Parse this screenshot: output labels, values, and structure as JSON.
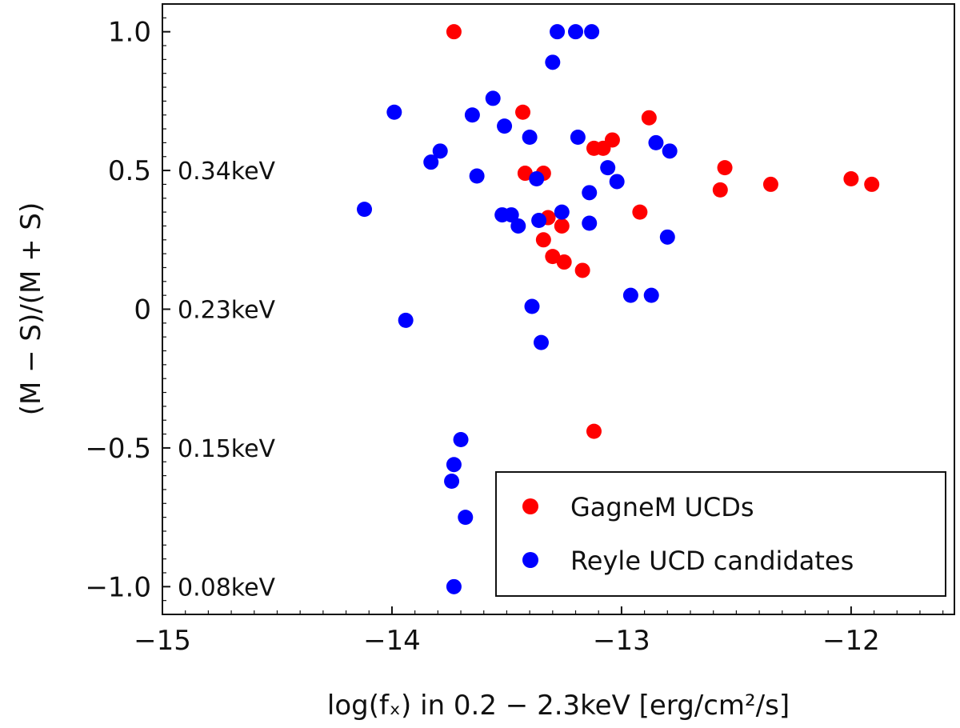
{
  "chart_data": {
    "type": "scatter",
    "title": "",
    "xlabel": "log(fₓ) in 0.2 − 2.3keV [erg/cm²/s]",
    "ylabel": "(M − S)/(M + S)",
    "xlim": [
      -15,
      -11.55
    ],
    "ylim": [
      -1.1,
      1.1
    ],
    "xticks": [
      {
        "value": -15,
        "label": "−15"
      },
      {
        "value": -14,
        "label": "−14"
      },
      {
        "value": -13,
        "label": "−13"
      },
      {
        "value": -12,
        "label": "−12"
      }
    ],
    "yticks": [
      {
        "value": 1.0,
        "label": "1.0"
      },
      {
        "value": 0.5,
        "label": "0.5"
      },
      {
        "value": 0.0,
        "label": "0"
      },
      {
        "value": -0.5,
        "label": "−0.5"
      },
      {
        "value": -1.0,
        "label": "−1.0"
      }
    ],
    "annotations": [
      {
        "y": 0.5,
        "text": "0.34keV"
      },
      {
        "y": 0.0,
        "text": "0.23keV"
      },
      {
        "y": -0.5,
        "text": "0.15keV"
      },
      {
        "y": -1.0,
        "text": "0.08keV"
      }
    ],
    "grid": false,
    "legend_position": "bottom-right",
    "series": [
      {
        "name": "GagneM UCDs",
        "color": "#ff0000",
        "points": [
          [
            -13.73,
            1.0
          ],
          [
            -13.43,
            0.71
          ],
          [
            -13.42,
            0.49
          ],
          [
            -13.34,
            0.49
          ],
          [
            -13.32,
            0.33
          ],
          [
            -13.34,
            0.25
          ],
          [
            -13.3,
            0.19
          ],
          [
            -13.26,
            0.3
          ],
          [
            -13.25,
            0.17
          ],
          [
            -13.17,
            0.14
          ],
          [
            -13.12,
            -0.44
          ],
          [
            -13.12,
            0.58
          ],
          [
            -13.08,
            0.58
          ],
          [
            -13.04,
            0.61
          ],
          [
            -12.88,
            0.69
          ],
          [
            -12.92,
            0.35
          ],
          [
            -12.57,
            0.43
          ],
          [
            -12.55,
            0.51
          ],
          [
            -12.35,
            0.45
          ],
          [
            -12.0,
            0.47
          ],
          [
            -11.91,
            0.45
          ]
        ]
      },
      {
        "name": "Reyle UCD candidates",
        "color": "#0000ff",
        "points": [
          [
            -14.12,
            0.36
          ],
          [
            -13.99,
            0.71
          ],
          [
            -13.94,
            -0.04
          ],
          [
            -13.83,
            0.53
          ],
          [
            -13.79,
            0.57
          ],
          [
            -13.74,
            -0.62
          ],
          [
            -13.73,
            -0.56
          ],
          [
            -13.7,
            -0.47
          ],
          [
            -13.68,
            -0.75
          ],
          [
            -13.73,
            -1.0
          ],
          [
            -13.65,
            0.7
          ],
          [
            -13.63,
            0.48
          ],
          [
            -13.56,
            0.76
          ],
          [
            -13.52,
            0.34
          ],
          [
            -13.51,
            0.66
          ],
          [
            -13.48,
            0.34
          ],
          [
            -13.45,
            0.3
          ],
          [
            -13.4,
            0.62
          ],
          [
            -13.39,
            0.01
          ],
          [
            -13.37,
            0.47
          ],
          [
            -13.36,
            0.32
          ],
          [
            -13.35,
            -0.12
          ],
          [
            -13.3,
            0.89
          ],
          [
            -13.28,
            1.0
          ],
          [
            -13.26,
            0.35
          ],
          [
            -13.2,
            1.0
          ],
          [
            -13.13,
            1.0
          ],
          [
            -13.19,
            0.62
          ],
          [
            -13.14,
            0.42
          ],
          [
            -13.14,
            0.31
          ],
          [
            -13.06,
            0.51
          ],
          [
            -13.02,
            0.46
          ],
          [
            -12.96,
            0.05
          ],
          [
            -12.87,
            0.05
          ],
          [
            -12.85,
            0.6
          ],
          [
            -12.8,
            0.26
          ],
          [
            -12.79,
            0.57
          ]
        ]
      }
    ]
  }
}
